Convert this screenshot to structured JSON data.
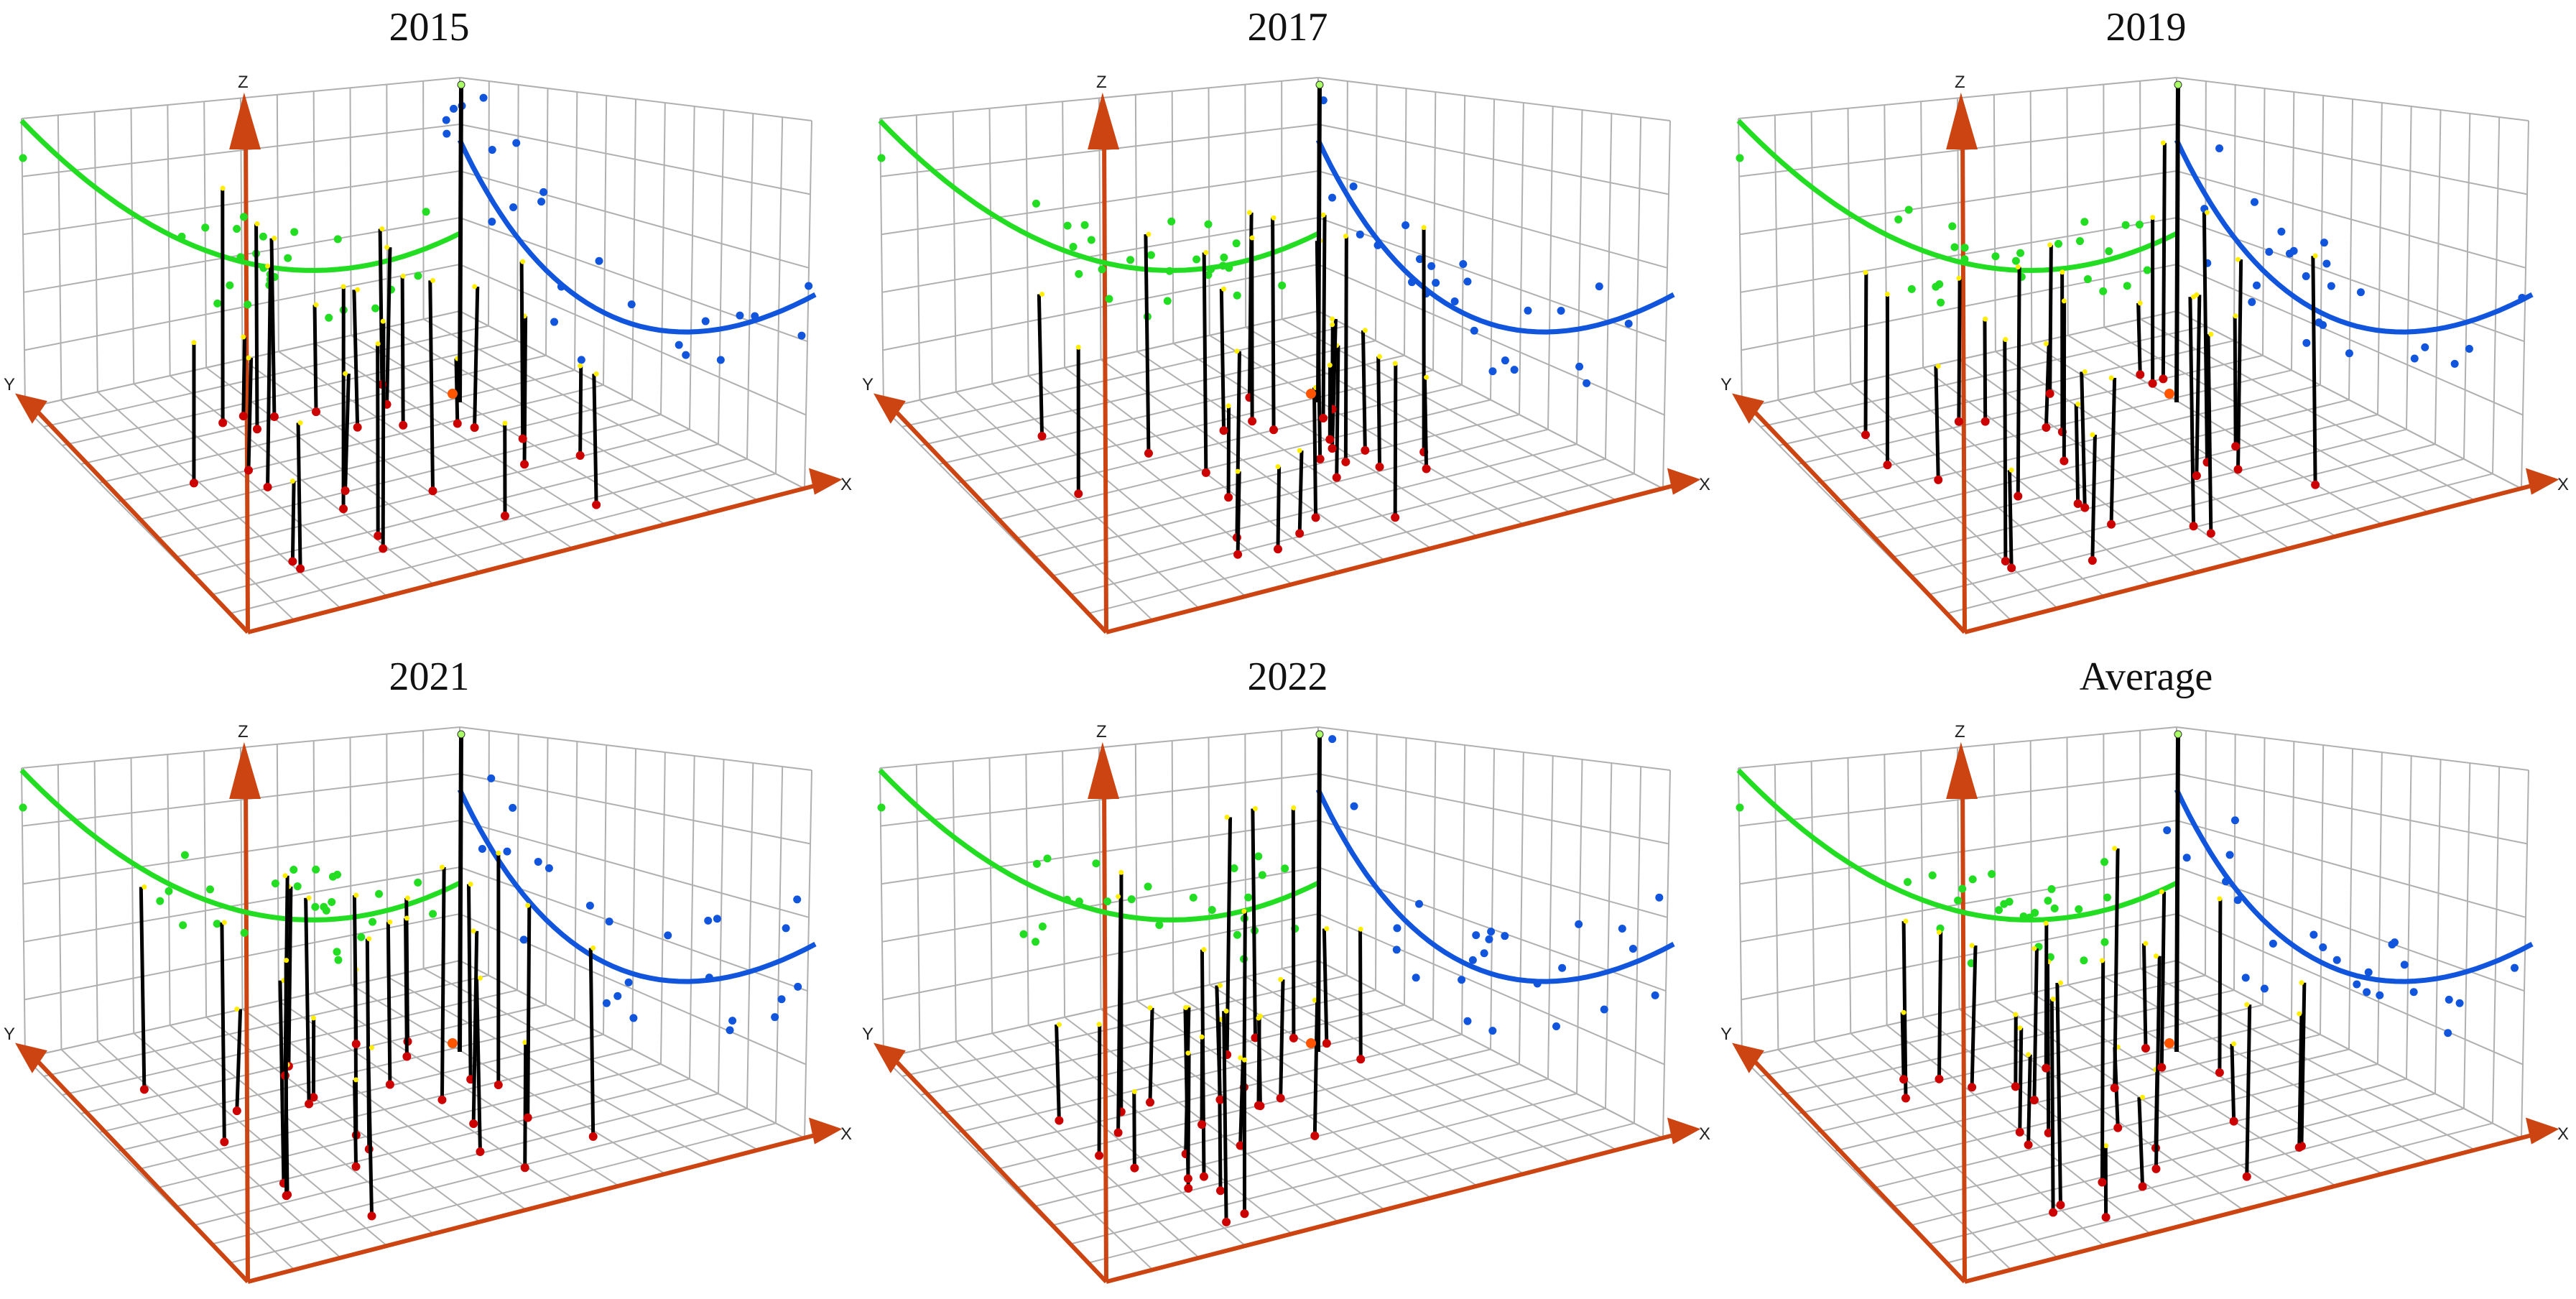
{
  "chart_data": [
    {
      "type": "3d-scatter",
      "title": "2015",
      "axes": {
        "x": "X",
        "y": "Y",
        "z": "Z"
      },
      "grid": true,
      "series": [
        {
          "name": "",
          "color": "#22dd22",
          "trend": "quadratic"
        },
        {
          "name": "",
          "color": "#1155dd",
          "trend": "quadratic"
        },
        {
          "name": "",
          "color": "#000000",
          "kind": "stems"
        }
      ]
    },
    {
      "type": "3d-scatter",
      "title": "2017",
      "axes": {
        "x": "X",
        "y": "Y",
        "z": "Z"
      },
      "grid": true,
      "series": [
        {
          "name": "",
          "color": "#22dd22",
          "trend": "quadratic"
        },
        {
          "name": "",
          "color": "#1155dd",
          "trend": "quadratic"
        },
        {
          "name": "",
          "color": "#000000",
          "kind": "stems"
        }
      ]
    },
    {
      "type": "3d-scatter",
      "title": "2019",
      "axes": {
        "x": "X",
        "y": "Y",
        "z": "Z"
      },
      "grid": true,
      "series": [
        {
          "name": "",
          "color": "#22dd22",
          "trend": "quadratic"
        },
        {
          "name": "",
          "color": "#1155dd",
          "trend": "quadratic"
        },
        {
          "name": "",
          "color": "#000000",
          "kind": "stems"
        }
      ]
    },
    {
      "type": "3d-scatter",
      "title": "2021",
      "axes": {
        "x": "X",
        "y": "Y",
        "z": "Z"
      },
      "grid": true,
      "series": [
        {
          "name": "",
          "color": "#22dd22",
          "trend": "quadratic"
        },
        {
          "name": "",
          "color": "#1155dd",
          "trend": "quadratic"
        },
        {
          "name": "",
          "color": "#000000",
          "kind": "stems"
        }
      ]
    },
    {
      "type": "3d-scatter",
      "title": "2022",
      "axes": {
        "x": "X",
        "y": "Y",
        "z": "Z"
      },
      "grid": true,
      "series": [
        {
          "name": "",
          "color": "#22dd22",
          "trend": "quadratic"
        },
        {
          "name": "",
          "color": "#1155dd",
          "trend": "quadratic"
        },
        {
          "name": "",
          "color": "#000000",
          "kind": "stems"
        }
      ]
    },
    {
      "type": "3d-scatter",
      "title": "Average",
      "axes": {
        "x": "X",
        "y": "Y",
        "z": "Z"
      },
      "grid": true,
      "series": [
        {
          "name": "",
          "color": "#22dd22",
          "trend": "quadratic"
        },
        {
          "name": "",
          "color": "#1155dd",
          "trend": "quadratic"
        },
        {
          "name": "",
          "color": "#000000",
          "kind": "stems"
        }
      ]
    }
  ],
  "colors": {
    "axis": "#cc4411",
    "grid": "#b0b0b0",
    "green": "#22dd22",
    "blue": "#1155dd",
    "stem": "#000000",
    "base": "#cc0000",
    "top": "#ffee00"
  }
}
